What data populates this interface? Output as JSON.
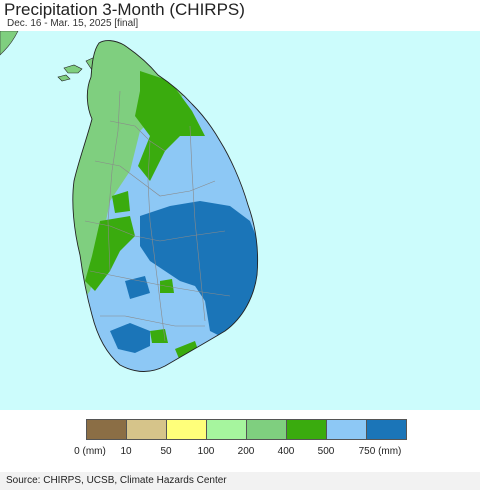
{
  "title": "Precipitation 3-Month (CHIRPS)",
  "subtitle": "Dec. 16 - Mar. 15, 2025 [final]",
  "legend": {
    "labels": [
      "0 (mm)",
      "10",
      "50",
      "100",
      "200",
      "400",
      "500",
      "750 (mm)"
    ],
    "colors": [
      "#8b6e45",
      "#d6c48a",
      "#ffff7a",
      "#a6f59e",
      "#7fcf7f",
      "#3aab0e",
      "#8dc8f5",
      "#1b75b8"
    ]
  },
  "source": "Source: CHIRPS, UCSB, Climate Hazards Center",
  "map": {
    "ocean_color": "#ccfcfc",
    "boundary_color": "#8a8a8a"
  }
}
